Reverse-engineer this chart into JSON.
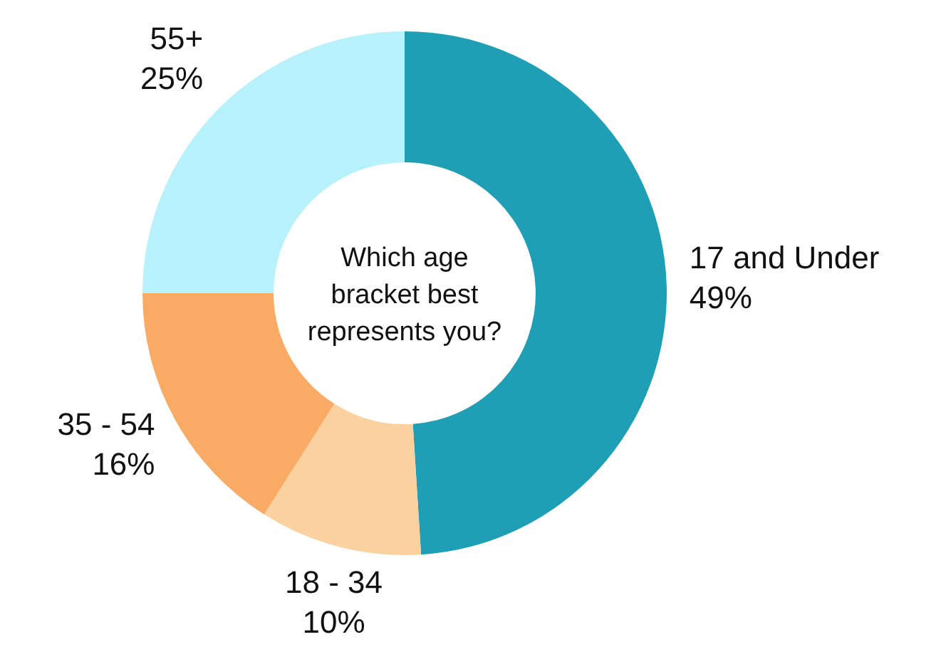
{
  "chart_data": {
    "type": "donut",
    "title": "Which age bracket best represents you?",
    "categories": [
      "17 and Under",
      "18 - 34",
      "35 - 54",
      "55+"
    ],
    "values": [
      49,
      10,
      16,
      25
    ],
    "colors": [
      "#1f9fb5",
      "#fad19f",
      "#f9ab66",
      "#b6f1fc"
    ],
    "value_labels": [
      "49%",
      "10%",
      "16%",
      "25%"
    ]
  }
}
